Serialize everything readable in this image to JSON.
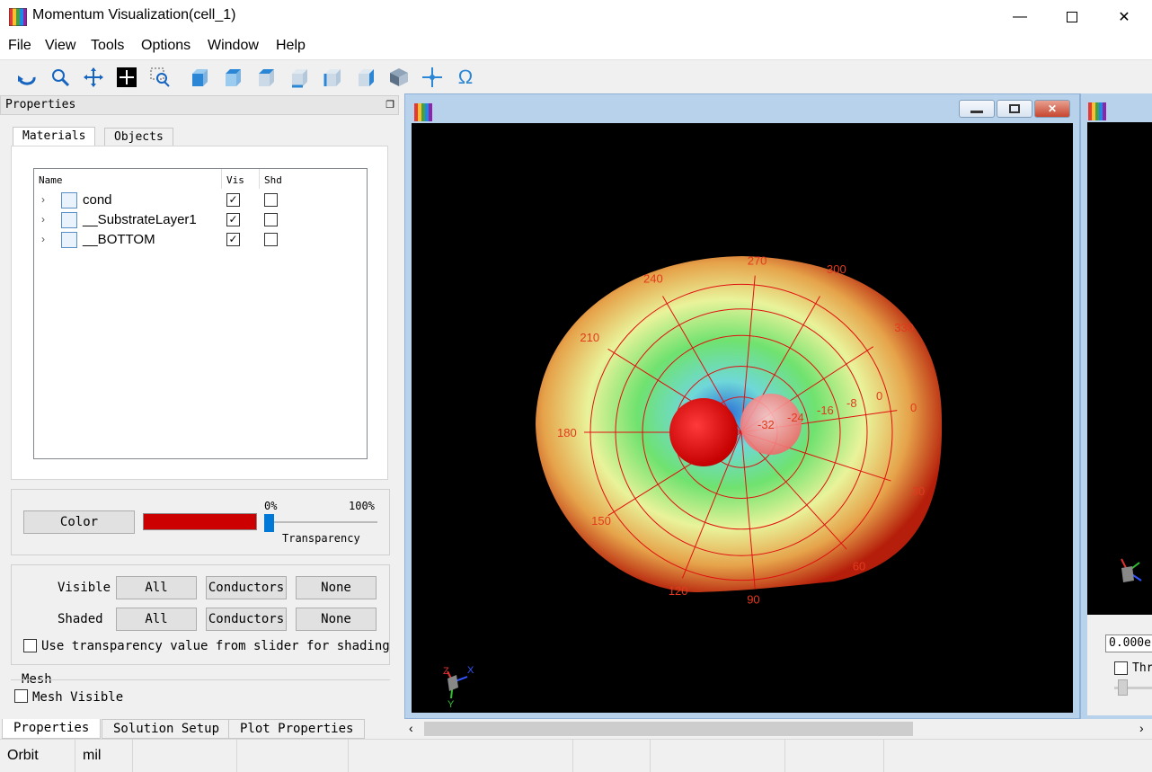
{
  "window": {
    "title": "Momentum Visualization(cell_1)"
  },
  "menu": [
    "File",
    "View",
    "Tools",
    "Options",
    "Window",
    "Help"
  ],
  "toolbar": {
    "icons": [
      "orbit-icon",
      "zoom-icon",
      "pan-icon",
      "fit-icon",
      "zoom-window-icon",
      "view-front-icon",
      "view-back-icon",
      "view-top-icon",
      "view-bottom-icon",
      "view-left-icon",
      "view-right-icon",
      "view-iso-icon",
      "center-icon",
      "omega-icon"
    ]
  },
  "properties": {
    "title": "Properties",
    "tabs": [
      "Materials",
      "Objects"
    ],
    "columns": {
      "name": "Name",
      "vis": "Vis",
      "shd": "Shd"
    },
    "materials": [
      {
        "name": "cond",
        "vis": true,
        "shd": false
      },
      {
        "name": "__SubstrateLayer1",
        "vis": true,
        "shd": false
      },
      {
        "name": "__BOTTOM",
        "vis": true,
        "shd": false
      }
    ],
    "color_button": "Color",
    "swatch_color": "#cc0000",
    "transparency": {
      "min": "0%",
      "max": "100%",
      "label": "Transparency",
      "value": 0
    },
    "visible_label": "Visible",
    "shaded_label": "Shaded",
    "btn_all": "All",
    "btn_conductors": "Conductors",
    "btn_none": "None",
    "use_transparency_label": "Use transparency value from slider for shading",
    "mesh_group": "Mesh",
    "mesh_visible_label": "Mesh Visible"
  },
  "bottom_tabs": [
    "Properties",
    "Solution Setup",
    "Plot Properties"
  ],
  "status": {
    "mode": "Orbit",
    "units": "mil"
  },
  "plot": {
    "angle_labels": [
      "270",
      "300",
      "330",
      "0",
      "30",
      "60",
      "90",
      "120",
      "150",
      "180",
      "210",
      "240"
    ],
    "radial_labels": [
      "-32",
      "-24",
      "-16",
      "-8",
      "0"
    ],
    "axis_labels": {
      "x": "X",
      "y": "Y",
      "z": "Z"
    }
  },
  "side_window": {
    "field_value": "0.000e",
    "checkbox_label": "Thr"
  }
}
